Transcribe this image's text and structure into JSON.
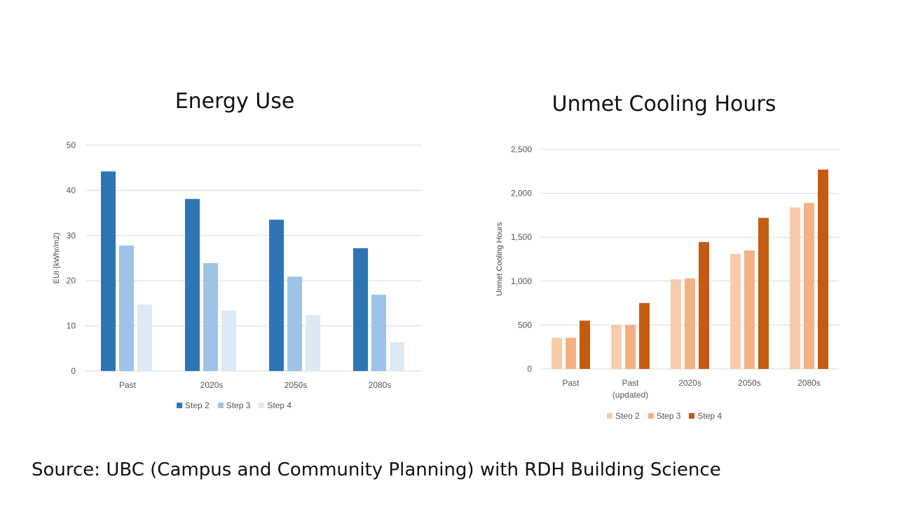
{
  "chart_data": [
    {
      "type": "bar",
      "title": "Energy Use",
      "ylabel": "EUI (kWhr/m2)",
      "xlabel": "",
      "ylim": [
        0,
        50
      ],
      "yticks": [
        "0",
        "10",
        "20",
        "30",
        "40",
        "50"
      ],
      "categories": [
        "Past",
        "2020s",
        "2050s",
        "2080s"
      ],
      "series": [
        {
          "name": "Step 2",
          "color": "#2e75b6",
          "values": [
            44.2,
            38.1,
            33.5,
            27.2
          ]
        },
        {
          "name": "Step 3",
          "color": "#9dc3e6",
          "values": [
            27.8,
            23.9,
            20.9,
            16.9
          ]
        },
        {
          "name": "Step 4",
          "color": "#dde9f5",
          "values": [
            14.7,
            13.4,
            12.4,
            6.4
          ]
        }
      ],
      "grid": true,
      "legend": "bottom"
    },
    {
      "type": "bar",
      "title": "Unmet Cooling Hours",
      "ylabel": "Unmet Cooling Hours",
      "xlabel": "",
      "ylim": [
        0,
        2500
      ],
      "yticks": [
        "0",
        "500",
        "1,000",
        "1,500",
        "2,000",
        "2,500"
      ],
      "categories": [
        [
          "Past"
        ],
        [
          "Past",
          "(updated)"
        ],
        [
          "2020s"
        ],
        [
          "2050s"
        ],
        [
          "2080s"
        ]
      ],
      "series": [
        {
          "name": "Steo 2",
          "color": "#f8cbad",
          "values": [
            355,
            500,
            1020,
            1310,
            1840
          ]
        },
        {
          "name": "Step 3",
          "color": "#f4b183",
          "values": [
            355,
            500,
            1030,
            1350,
            1890
          ]
        },
        {
          "name": "Step 4",
          "color": "#c55a11",
          "values": [
            550,
            750,
            1445,
            1720,
            2270
          ]
        }
      ],
      "grid": true,
      "legend": "bottom"
    }
  ],
  "source": "Source: UBC (Campus and Community Planning) with RDH Building Science"
}
